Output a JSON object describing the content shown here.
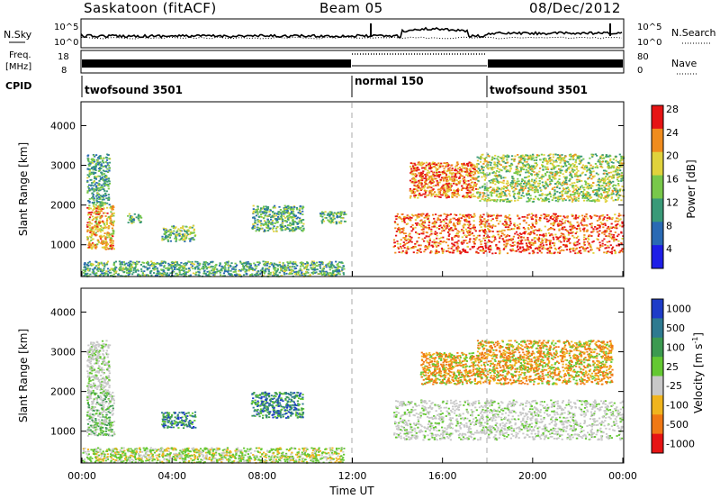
{
  "header": {
    "site": "Saskatoon (fitACF)",
    "beam": "Beam 05",
    "date": "08/Dec/2012"
  },
  "noise_panel": {
    "left_label": "N.Sky",
    "right_label": "N.Search",
    "left_ticks": [
      "10^5",
      "10^0"
    ],
    "right_ticks": [
      "10^5",
      "10^0"
    ]
  },
  "freq_panel": {
    "left_label_1": "Freq.",
    "left_label_2": "[MHz]",
    "right_label": "Nave",
    "left_ticks": [
      "18",
      "8"
    ],
    "right_ticks": [
      "80",
      "0"
    ]
  },
  "cpid_panel": {
    "label": "CPID",
    "segments": [
      {
        "text": "twofsound 3501",
        "start_hour": 0
      },
      {
        "text": "normal 150",
        "start_hour": 12
      },
      {
        "text": "twofsound 3501",
        "start_hour": 18
      }
    ]
  },
  "chart_data": [
    {
      "type": "heatmap",
      "name": "power",
      "ylabel": "Slant Range [km]",
      "yticks": [
        1000,
        2000,
        3000,
        4000
      ],
      "ylim": [
        200,
        4600
      ],
      "colorbar": {
        "label": "Power [dB]",
        "ticks": [
          "4",
          "8",
          "12",
          "16",
          "20",
          "24",
          "28"
        ],
        "colors": [
          "#1e1ee6",
          "#2a6ab4",
          "#3a9a78",
          "#78c84a",
          "#e0d23c",
          "#f08c1e",
          "#e61414"
        ]
      },
      "regions": [
        {
          "x": [
            0.2,
            1.4
          ],
          "y": [
            900,
            2000
          ],
          "level": 0.75
        },
        {
          "x": [
            0.2,
            1.2
          ],
          "y": [
            2000,
            3300
          ],
          "level": 0.35
        },
        {
          "x": [
            2.0,
            2.6
          ],
          "y": [
            1550,
            1800
          ],
          "level": 0.4
        },
        {
          "x": [
            3.5,
            5.0
          ],
          "y": [
            1100,
            1500
          ],
          "level": 0.45
        },
        {
          "x": [
            7.5,
            9.8
          ],
          "y": [
            1350,
            2000
          ],
          "level": 0.4
        },
        {
          "x": [
            10.5,
            11.7
          ],
          "y": [
            1550,
            1850
          ],
          "level": 0.4
        },
        {
          "x": [
            0,
            11.6
          ],
          "y": [
            220,
            600
          ],
          "level": 0.4
        },
        {
          "x": [
            13.8,
            24
          ],
          "y": [
            800,
            1800
          ],
          "level": 0.9
        },
        {
          "x": [
            14.5,
            17.5
          ],
          "y": [
            2200,
            3100
          ],
          "level": 0.85
        },
        {
          "x": [
            17.5,
            24
          ],
          "y": [
            2100,
            3300
          ],
          "level": 0.55
        }
      ]
    },
    {
      "type": "heatmap",
      "name": "velocity",
      "ylabel": "Slant Range [km]",
      "yticks": [
        1000,
        2000,
        3000,
        4000
      ],
      "ylim": [
        200,
        4600
      ],
      "colorbar": {
        "label": "Velocity [m s-1]",
        "ticks": [
          "1000",
          "500",
          "100",
          "25",
          "-25",
          "-100",
          "-500",
          "-1000"
        ],
        "colors": [
          "#1e3cc8",
          "#2e7a90",
          "#3c9a50",
          "#64c832",
          "#c8c8c8",
          "#f0b41e",
          "#f07814",
          "#e61414"
        ]
      },
      "regions": [
        {
          "x": [
            0.2,
            1.4
          ],
          "y": [
            900,
            2000
          ],
          "cls": "gray-green"
        },
        {
          "x": [
            0.2,
            1.2
          ],
          "y": [
            2000,
            3300
          ],
          "cls": "gray"
        },
        {
          "x": [
            3.5,
            5.0
          ],
          "y": [
            1100,
            1500
          ],
          "cls": "green-blue"
        },
        {
          "x": [
            7.5,
            9.8
          ],
          "y": [
            1350,
            2000
          ],
          "cls": "green-blue"
        },
        {
          "x": [
            0,
            11.6
          ],
          "y": [
            220,
            600
          ],
          "cls": "green"
        },
        {
          "x": [
            13.8,
            24
          ],
          "y": [
            800,
            1800
          ],
          "cls": "gray"
        },
        {
          "x": [
            15.0,
            17.5
          ],
          "y": [
            2200,
            3000
          ],
          "cls": "orange"
        },
        {
          "x": [
            17.5,
            23.5
          ],
          "y": [
            2200,
            3300
          ],
          "cls": "orange"
        }
      ],
      "xlabel": "Time UT",
      "xticks": [
        "00:00",
        "04:00",
        "08:00",
        "12:00",
        "16:00",
        "20:00",
        "00:00"
      ],
      "xlim": [
        0,
        24
      ]
    }
  ]
}
